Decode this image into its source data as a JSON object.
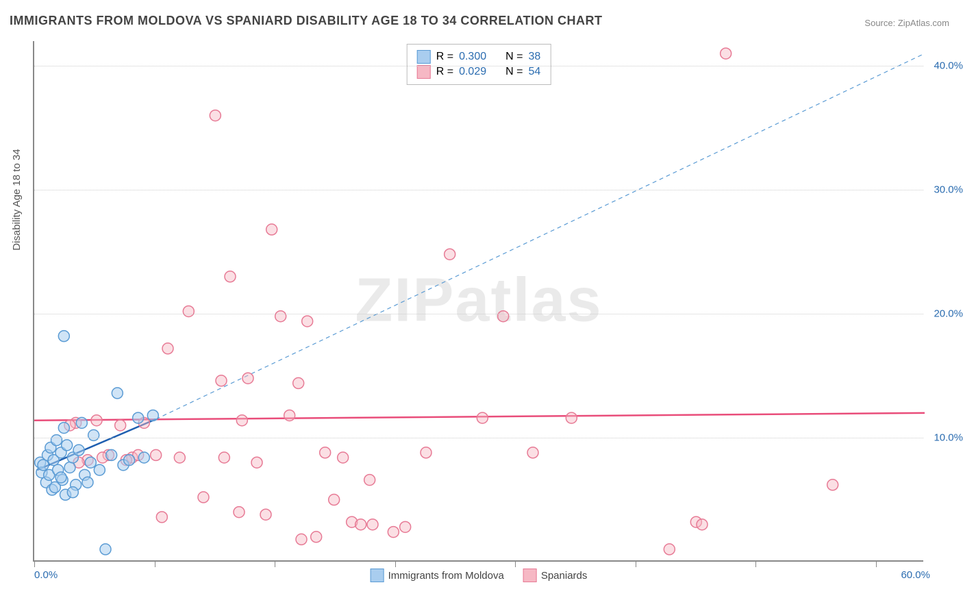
{
  "title": "IMMIGRANTS FROM MOLDOVA VS SPANIARD DISABILITY AGE 18 TO 34 CORRELATION CHART",
  "source_label": "Source:",
  "source_name": "ZipAtlas.com",
  "watermark": "ZIPatlas",
  "y_axis_title": "Disability Age 18 to 34",
  "chart": {
    "type": "scatter",
    "xlim": [
      0,
      60
    ],
    "ylim": [
      0,
      42
    ],
    "xtick_positions": [
      0,
      8.1,
      16.2,
      24.3,
      32.4,
      40.5,
      48.6,
      56.7
    ],
    "xtick_labels_shown": {
      "start": "0.0%",
      "end": "60.0%"
    },
    "ytick_positions": [
      10,
      20,
      30,
      40
    ],
    "ytick_labels": [
      "10.0%",
      "20.0%",
      "30.0%",
      "40.0%"
    ],
    "background_color": "#ffffff",
    "grid_color": "#cccccc",
    "axis_color": "#888888",
    "marker_radius": 8,
    "marker_stroke_width": 1.5,
    "series": [
      {
        "name": "Immigrants from Moldova",
        "fill": "#a9cdef",
        "stroke": "#5a9bd4",
        "fill_opacity": 0.55,
        "R": "0.300",
        "N": "38",
        "trend_solid": {
          "x1": 0.2,
          "y1": 7.4,
          "x2": 8.2,
          "y2": 11.5,
          "color": "#1f5fb0",
          "width": 2.5
        },
        "trend_dashed": {
          "x1": 8.2,
          "y1": 11.5,
          "x2": 60,
          "y2": 41,
          "color": "#5a9bd4",
          "width": 1.2,
          "dash": "6,5"
        },
        "points": [
          [
            0.4,
            8.0
          ],
          [
            0.5,
            7.2
          ],
          [
            0.6,
            7.8
          ],
          [
            0.8,
            6.4
          ],
          [
            0.9,
            8.6
          ],
          [
            1.0,
            7.0
          ],
          [
            1.1,
            9.2
          ],
          [
            1.2,
            5.8
          ],
          [
            1.3,
            8.2
          ],
          [
            1.4,
            6.0
          ],
          [
            1.5,
            9.8
          ],
          [
            1.6,
            7.4
          ],
          [
            1.8,
            8.8
          ],
          [
            1.9,
            6.6
          ],
          [
            2.0,
            10.8
          ],
          [
            2.1,
            5.4
          ],
          [
            2.2,
            9.4
          ],
          [
            2.4,
            7.6
          ],
          [
            2.6,
            8.4
          ],
          [
            2.8,
            6.2
          ],
          [
            3.0,
            9.0
          ],
          [
            3.2,
            11.2
          ],
          [
            3.4,
            7.0
          ],
          [
            3.6,
            6.4
          ],
          [
            3.8,
            8.0
          ],
          [
            4.0,
            10.2
          ],
          [
            4.4,
            7.4
          ],
          [
            4.8,
            1.0
          ],
          [
            5.2,
            8.6
          ],
          [
            5.6,
            13.6
          ],
          [
            6.0,
            7.8
          ],
          [
            6.4,
            8.2
          ],
          [
            7.0,
            11.6
          ],
          [
            7.4,
            8.4
          ],
          [
            8.0,
            11.8
          ],
          [
            2.0,
            18.2
          ],
          [
            1.8,
            6.8
          ],
          [
            2.6,
            5.6
          ]
        ]
      },
      {
        "name": "Spaniards",
        "fill": "#f6b8c4",
        "stroke": "#e77a95",
        "fill_opacity": 0.45,
        "R": "0.029",
        "N": "54",
        "trend_solid": {
          "x1": 0,
          "y1": 11.4,
          "x2": 60,
          "y2": 12.0,
          "color": "#e94d7a",
          "width": 2.5
        },
        "points": [
          [
            2.8,
            11.2
          ],
          [
            3.6,
            8.2
          ],
          [
            4.2,
            11.4
          ],
          [
            5.0,
            8.6
          ],
          [
            5.8,
            11.0
          ],
          [
            6.6,
            8.4
          ],
          [
            7.4,
            11.2
          ],
          [
            8.2,
            8.6
          ],
          [
            9.0,
            17.2
          ],
          [
            9.8,
            8.4
          ],
          [
            10.4,
            20.2
          ],
          [
            12.2,
            36.0
          ],
          [
            12.6,
            14.6
          ],
          [
            13.2,
            23.0
          ],
          [
            13.8,
            4.0
          ],
          [
            14.4,
            14.8
          ],
          [
            15.0,
            8.0
          ],
          [
            15.6,
            3.8
          ],
          [
            16.0,
            26.8
          ],
          [
            16.6,
            19.8
          ],
          [
            17.2,
            11.8
          ],
          [
            17.8,
            14.4
          ],
          [
            18.4,
            19.4
          ],
          [
            19.0,
            2.0
          ],
          [
            19.6,
            8.8
          ],
          [
            20.2,
            5.0
          ],
          [
            20.8,
            8.4
          ],
          [
            21.4,
            3.2
          ],
          [
            22.0,
            3.0
          ],
          [
            22.6,
            6.6
          ],
          [
            24.2,
            2.4
          ],
          [
            25.0,
            2.8
          ],
          [
            26.4,
            8.8
          ],
          [
            28.0,
            24.8
          ],
          [
            30.2,
            11.6
          ],
          [
            31.6,
            19.8
          ],
          [
            33.6,
            8.8
          ],
          [
            36.2,
            11.6
          ],
          [
            42.8,
            1.0
          ],
          [
            44.6,
            3.2
          ],
          [
            45.0,
            3.0
          ],
          [
            46.6,
            41.0
          ],
          [
            53.8,
            6.2
          ],
          [
            2.4,
            11.0
          ],
          [
            3.0,
            8.0
          ],
          [
            4.6,
            8.4
          ],
          [
            6.2,
            8.2
          ],
          [
            7.0,
            8.6
          ],
          [
            8.6,
            3.6
          ],
          [
            11.4,
            5.2
          ],
          [
            12.8,
            8.4
          ],
          [
            14.0,
            11.4
          ],
          [
            18.0,
            1.8
          ],
          [
            22.8,
            3.0
          ]
        ]
      }
    ]
  },
  "legend_bottom": [
    {
      "label": "Immigrants from Moldova",
      "fill": "#a9cdef",
      "stroke": "#5a9bd4"
    },
    {
      "label": "Spaniards",
      "fill": "#f6b8c4",
      "stroke": "#e77a95"
    }
  ]
}
